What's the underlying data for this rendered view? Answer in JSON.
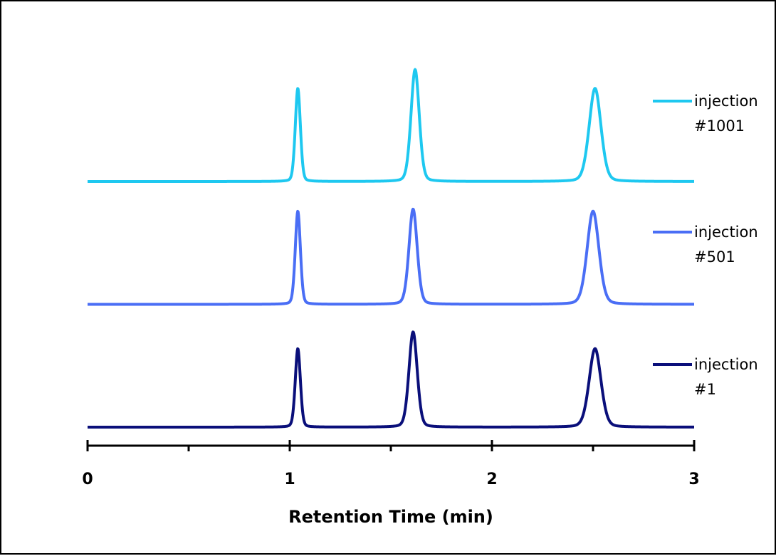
{
  "chart_data": {
    "type": "line",
    "title": "",
    "xlabel": "Retention Time (min)",
    "ylabel": "",
    "xlim": [
      0,
      3
    ],
    "x_ticks": [
      "0",
      "1",
      "2",
      "3"
    ],
    "x_minor_ticks": [
      0.5,
      1.5,
      2.5
    ],
    "grid": false,
    "legend_position": "right",
    "series": [
      {
        "name": "injection #1001",
        "label_lines": [
          "injection",
          "#1001"
        ],
        "color": "#1ec8f0",
        "baseline_offset": 2.0,
        "peaks": [
          {
            "rt": 1.04,
            "height": 0.89,
            "width": 0.013
          },
          {
            "rt": 1.62,
            "height": 1.07,
            "width": 0.021
          },
          {
            "rt": 2.51,
            "height": 0.89,
            "width": 0.03
          }
        ]
      },
      {
        "name": "injection #501",
        "label_lines": [
          "injection",
          "#501"
        ],
        "color": "#4a6ef5",
        "baseline_offset": 1.0,
        "peaks": [
          {
            "rt": 1.04,
            "height": 0.89,
            "width": 0.013
          },
          {
            "rt": 1.61,
            "height": 0.91,
            "width": 0.021
          },
          {
            "rt": 2.5,
            "height": 0.89,
            "width": 0.03
          }
        ]
      },
      {
        "name": "injection #1",
        "label_lines": [
          "injection",
          "#1"
        ],
        "color": "#0a0f7a",
        "baseline_offset": 0.0,
        "peaks": [
          {
            "rt": 1.04,
            "height": 0.75,
            "width": 0.013
          },
          {
            "rt": 1.61,
            "height": 0.91,
            "width": 0.021
          },
          {
            "rt": 2.51,
            "height": 0.75,
            "width": 0.03
          }
        ]
      }
    ]
  }
}
